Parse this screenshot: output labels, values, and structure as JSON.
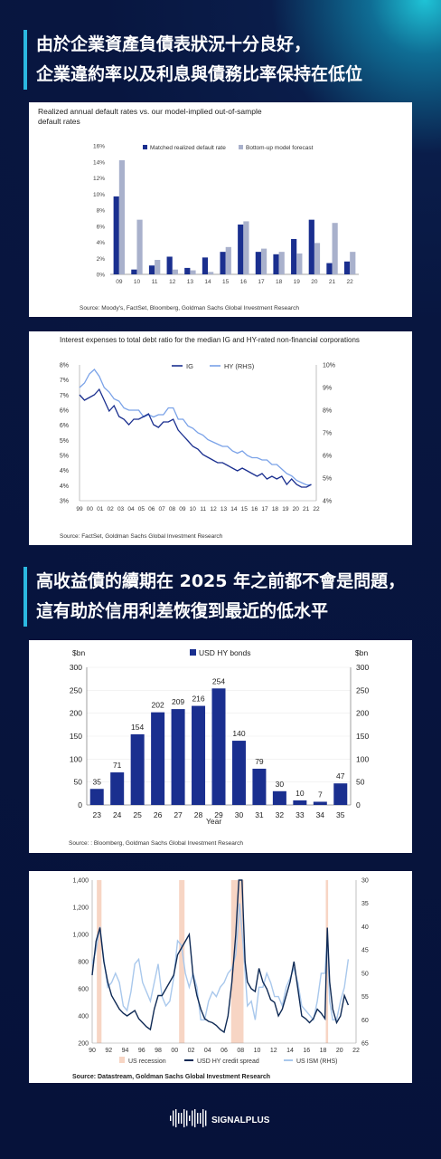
{
  "section1": {
    "lines": [
      "由於企業資產負債表狀況十分良好，",
      "企業違約率以及利息與債務比率保持在低位"
    ]
  },
  "section2": {
    "lines": [
      "高收益債的續期在 2025 年之前都不會是問題，",
      "這有助於信用利差恢復到最近的低水平"
    ]
  },
  "logo": {
    "text": "SIGNALPLUS"
  },
  "colors": {
    "navy": "#1a2f8f",
    "light": "#a9b1cc",
    "ig": "#1a2f8f",
    "hy": "#7aa2e8",
    "recession": "#f7d5c4",
    "ism": "#a9c8ec",
    "spread": "#0f2a55"
  },
  "chart_data": [
    {
      "type": "bar",
      "title": "Realized annual default rates vs. our model-implied out-of-sample default rates",
      "title_lines": [
        "Realized annual default rates vs. our model-implied out-of-sample",
        "default rates"
      ],
      "categories": [
        "09",
        "10",
        "11",
        "12",
        "13",
        "14",
        "15",
        "16",
        "17",
        "18",
        "19",
        "20",
        "21",
        "22"
      ],
      "series": [
        {
          "name": "Matched realized default rate",
          "values": [
            9.7,
            0.6,
            1.1,
            2.2,
            0.8,
            2.1,
            2.8,
            6.2,
            2.8,
            2.5,
            4.4,
            6.8,
            1.4,
            1.6
          ]
        },
        {
          "name": "Bottom-up model forecast",
          "values": [
            14.2,
            6.8,
            1.8,
            0.6,
            0.5,
            0.3,
            3.4,
            6.6,
            3.2,
            2.8,
            2.6,
            3.9,
            6.4,
            2.8
          ]
        }
      ],
      "yticks": [
        "16%",
        "14%",
        "12%",
        "10%",
        "8%",
        "6%",
        "4%",
        "2%",
        "0%"
      ],
      "ylim": [
        0,
        16
      ],
      "legend": "top",
      "source": "Source: Moody's, FactSet, Bloomberg, Goldman Sachs Global Investment Research"
    },
    {
      "type": "line",
      "title": "Interest expenses to total debt ratio for the median IG and HY-rated non-financial corporations",
      "xticks": [
        "99",
        "00",
        "01",
        "02",
        "03",
        "04",
        "05",
        "06",
        "07",
        "08",
        "09",
        "10",
        "11",
        "12",
        "13",
        "14",
        "15",
        "16",
        "17",
        "18",
        "19",
        "20",
        "21",
        "22"
      ],
      "x_start": 1999.0,
      "x_end": 2023.0,
      "yticks_left": [
        "8%",
        "7%",
        "7%",
        "6%",
        "6%",
        "5%",
        "5%",
        "4%",
        "4%",
        "3%"
      ],
      "yticks_right": [
        "10%",
        "9%",
        "8%",
        "7%",
        "6%",
        "5%",
        "4%"
      ],
      "ylim_left": [
        3,
        8
      ],
      "ylim_right": [
        4,
        10
      ],
      "legend": "top-right",
      "series": [
        {
          "name": "IG",
          "axis": "left",
          "x": [
            1999.0,
            1999.5,
            2000.0,
            2000.5,
            2001.0,
            2001.5,
            2002.0,
            2002.5,
            2003.0,
            2003.5,
            2004.0,
            2004.5,
            2005.0,
            2005.5,
            2006.0,
            2006.5,
            2007.0,
            2007.5,
            2008.0,
            2008.5,
            2009.0,
            2009.5,
            2010.0,
            2010.5,
            2011.0,
            2011.5,
            2012.0,
            2012.5,
            2013.0,
            2013.5,
            2014.0,
            2014.5,
            2015.0,
            2015.5,
            2016.0,
            2016.5,
            2017.0,
            2017.5,
            2018.0,
            2018.5,
            2019.0,
            2019.5,
            2020.0,
            2020.5,
            2021.0,
            2021.5,
            2022.0,
            2022.5
          ],
          "values": [
            6.9,
            6.7,
            6.8,
            6.9,
            7.1,
            6.7,
            6.3,
            6.5,
            6.1,
            6.0,
            5.8,
            6.0,
            6.0,
            6.1,
            6.2,
            5.8,
            5.7,
            5.9,
            5.9,
            6.0,
            5.6,
            5.4,
            5.2,
            5.0,
            4.9,
            4.7,
            4.6,
            4.5,
            4.4,
            4.4,
            4.3,
            4.2,
            4.1,
            4.2,
            4.1,
            4.0,
            3.9,
            4.0,
            3.8,
            3.9,
            3.8,
            3.9,
            3.6,
            3.8,
            3.6,
            3.5,
            3.5,
            3.6
          ]
        },
        {
          "name": "HY (RHS)",
          "axis": "right",
          "x": [
            1999.0,
            1999.5,
            2000.0,
            2000.5,
            2001.0,
            2001.5,
            2002.0,
            2002.5,
            2003.0,
            2003.5,
            2004.0,
            2004.5,
            2005.0,
            2005.5,
            2006.0,
            2006.5,
            2007.0,
            2007.5,
            2008.0,
            2008.5,
            2009.0,
            2009.5,
            2010.0,
            2010.5,
            2011.0,
            2011.5,
            2012.0,
            2012.5,
            2013.0,
            2013.5,
            2014.0,
            2014.5,
            2015.0,
            2015.5,
            2016.0,
            2016.5,
            2017.0,
            2017.5,
            2018.0,
            2018.5,
            2019.0,
            2019.5,
            2020.0,
            2020.5,
            2021.0,
            2021.5,
            2022.0,
            2022.5
          ],
          "values": [
            9.0,
            9.2,
            9.6,
            9.8,
            9.5,
            9.0,
            8.8,
            8.5,
            8.4,
            8.1,
            8.0,
            8.0,
            8.0,
            7.7,
            7.8,
            7.7,
            7.8,
            7.8,
            8.1,
            8.1,
            7.6,
            7.6,
            7.3,
            7.2,
            7.0,
            6.9,
            6.7,
            6.6,
            6.5,
            6.4,
            6.4,
            6.2,
            6.1,
            6.2,
            6.0,
            5.9,
            5.9,
            5.8,
            5.8,
            5.6,
            5.6,
            5.4,
            5.2,
            5.1,
            4.9,
            4.8,
            4.7,
            4.7
          ]
        }
      ],
      "source": "Source: FactSet, Goldman Sachs Global Investment Research"
    },
    {
      "type": "bar",
      "title": "",
      "legend_label": "USD HY bonds",
      "ylabel_left": "$bn",
      "ylabel_right": "$bn",
      "xlabel": "Year",
      "categories": [
        "23",
        "24",
        "25",
        "26",
        "27",
        "28",
        "29",
        "30",
        "31",
        "32",
        "33",
        "34",
        "35"
      ],
      "values": [
        35,
        71,
        154,
        202,
        209,
        216,
        254,
        140,
        79,
        30,
        10,
        7,
        47
      ],
      "yticks": [
        "300",
        "250",
        "200",
        "150",
        "100",
        "50",
        "0"
      ],
      "ylim": [
        0,
        300
      ],
      "source": "Source: : Bloomberg, Goldman Sachs Global Investment Research"
    },
    {
      "type": "line",
      "title": "",
      "x_start": 1990.0,
      "x_end": 2024.0,
      "xticks": [
        "90",
        "92",
        "94",
        "96",
        "98",
        "00",
        "02",
        "04",
        "06",
        "08",
        "10",
        "12",
        "14",
        "16",
        "18",
        "20",
        "22"
      ],
      "yticks_left": [
        "1,400",
        "1,200",
        "1,000",
        "800",
        "600",
        "400",
        "200"
      ],
      "yticks_right": [
        "30",
        "35",
        "40",
        "45",
        "50",
        "55",
        "60",
        "65"
      ],
      "ylim_left": [
        200,
        1400
      ],
      "ylim_right": [
        65,
        30
      ],
      "recessions": [
        [
          1990.6,
          1991.2
        ],
        [
          2001.2,
          2001.9
        ],
        [
          2007.9,
          2009.5
        ],
        [
          2020.1,
          2020.4
        ]
      ],
      "legend_items": [
        "US recession",
        "USD HY  credit spread",
        "US ISM (RHS)"
      ],
      "series": [
        {
          "name": "USD HY  credit spread",
          "axis": "left",
          "x": [
            1990.0,
            1990.5,
            1991.0,
            1991.5,
            1992.0,
            1992.5,
            1993.0,
            1993.5,
            1994.0,
            1994.5,
            1995.0,
            1995.5,
            1996.0,
            1996.5,
            1997.0,
            1997.5,
            1998.0,
            1998.5,
            1999.0,
            1999.5,
            2000.0,
            2000.5,
            2001.0,
            2001.5,
            2002.0,
            2002.5,
            2003.0,
            2003.5,
            2004.0,
            2004.5,
            2005.0,
            2005.5,
            2006.0,
            2006.5,
            2007.0,
            2007.5,
            2008.0,
            2008.5,
            2008.9,
            2009.3,
            2009.7,
            2010.0,
            2010.5,
            2011.0,
            2011.5,
            2012.0,
            2012.5,
            2013.0,
            2013.5,
            2014.0,
            2014.5,
            2015.0,
            2015.5,
            2016.0,
            2016.5,
            2017.0,
            2017.5,
            2018.0,
            2018.5,
            2019.0,
            2019.5,
            2020.0,
            2020.3,
            2020.6,
            2021.0,
            2021.5,
            2022.0,
            2022.5,
            2023.0
          ],
          "values": [
            700,
            950,
            1050,
            800,
            650,
            550,
            500,
            450,
            420,
            400,
            420,
            440,
            380,
            350,
            320,
            300,
            450,
            550,
            550,
            600,
            650,
            700,
            850,
            900,
            950,
            1000,
            700,
            550,
            450,
            380,
            360,
            350,
            330,
            300,
            280,
            400,
            650,
            1000,
            1600,
            1400,
            800,
            650,
            600,
            580,
            750,
            650,
            600,
            520,
            500,
            400,
            450,
            550,
            650,
            800,
            600,
            400,
            380,
            350,
            380,
            450,
            420,
            380,
            1050,
            650,
            450,
            350,
            400,
            550,
            480
          ]
        },
        {
          "name": "US ISM (RHS)",
          "axis": "right",
          "x": [
            1990.0,
            1990.5,
            1991.0,
            1991.5,
            1992.0,
            1992.5,
            1993.0,
            1993.5,
            1994.0,
            1994.5,
            1995.0,
            1995.5,
            1996.0,
            1996.5,
            1997.0,
            1997.5,
            1998.0,
            1998.5,
            1999.0,
            1999.5,
            2000.0,
            2000.5,
            2001.0,
            2001.5,
            2002.0,
            2002.5,
            2003.0,
            2003.5,
            2004.0,
            2004.5,
            2005.0,
            2005.5,
            2006.0,
            2006.5,
            2007.0,
            2007.5,
            2008.0,
            2008.5,
            2009.0,
            2009.5,
            2010.0,
            2010.5,
            2011.0,
            2011.5,
            2012.0,
            2012.5,
            2013.0,
            2013.5,
            2014.0,
            2014.5,
            2015.0,
            2015.5,
            2016.0,
            2016.5,
            2017.0,
            2017.5,
            2018.0,
            2018.5,
            2019.0,
            2019.5,
            2020.0,
            2020.3,
            2020.6,
            2021.0,
            2021.5,
            2022.0,
            2022.5,
            2023.0
          ],
          "values": [
            48,
            45,
            40,
            47,
            53,
            52,
            50,
            52,
            57,
            58,
            54,
            48,
            47,
            52,
            54,
            56,
            52,
            48,
            55,
            57,
            56,
            51,
            43,
            44,
            50,
            53,
            50,
            53,
            60,
            60,
            56,
            54,
            55,
            53,
            52,
            50,
            49,
            46,
            35,
            45,
            57,
            56,
            60,
            53,
            53,
            50,
            52,
            55,
            55,
            57,
            53,
            51,
            49,
            52,
            57,
            58,
            59,
            60,
            56,
            50,
            50,
            42,
            56,
            60,
            60,
            56,
            53,
            47
          ]
        }
      ],
      "source": "Source: Datastream, Goldman Sachs Global Investment Research"
    }
  ]
}
